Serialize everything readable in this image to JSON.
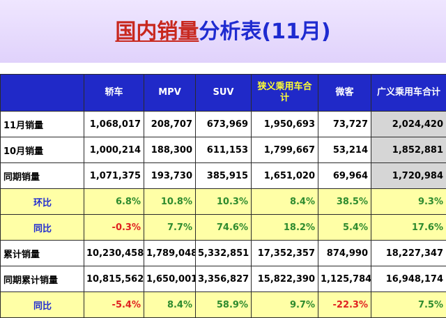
{
  "title": {
    "part1": "国内销量",
    "part2": "分析表(11月)"
  },
  "columns": [
    "轿车",
    "MPV",
    "SUV",
    "狭义乘用车合计",
    "微客",
    "广义乘用车合计"
  ],
  "rows": [
    {
      "label": "11月销量",
      "values": [
        "1,068,017",
        "208,707",
        "673,969",
        "1,950,693",
        "73,727",
        "2,024,420"
      ]
    },
    {
      "label": "10月销量",
      "values": [
        "1,000,214",
        "188,300",
        "611,153",
        "1,799,667",
        "53,214",
        "1,852,881"
      ]
    },
    {
      "label": "同期销量",
      "values": [
        "1,071,375",
        "193,730",
        "385,915",
        "1,651,020",
        "69,964",
        "1,720,984"
      ]
    },
    {
      "label": "环比",
      "values": [
        "6.8%",
        "10.8%",
        "10.3%",
        "8.4%",
        "38.5%",
        "9.3%"
      ]
    },
    {
      "label": "同比",
      "values": [
        "-0.3%",
        "7.7%",
        "74.6%",
        "18.2%",
        "5.4%",
        "17.6%"
      ]
    },
    {
      "label": "累计销量",
      "values": [
        "10,230,458",
        "1,789,048",
        "5,332,851",
        "17,352,357",
        "874,990",
        "18,227,347"
      ]
    },
    {
      "label": "同期累计销量",
      "values": [
        "10,815,562",
        "1,650,001",
        "3,356,827",
        "15,822,390",
        "1,125,784",
        "16,948,174"
      ]
    },
    {
      "label": "同比",
      "values": [
        "-5.4%",
        "8.4%",
        "58.9%",
        "9.7%",
        "-22.3%",
        "7.5%"
      ]
    }
  ],
  "colors": {
    "header_bg": "#2029c8",
    "highlight_row": "#ffffa6",
    "gray_cell": "#d6d6d6",
    "negative": "#e02020",
    "positive": "#2e8b2e",
    "title_blue": "#1f2bd0",
    "title_red": "#c8281e"
  }
}
